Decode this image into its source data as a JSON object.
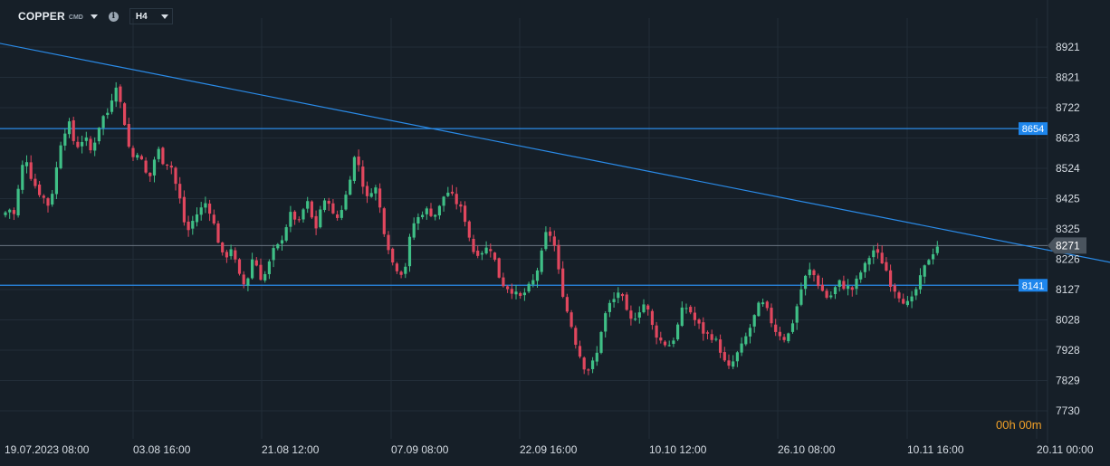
{
  "header": {
    "symbol": "COPPER",
    "symbol_type": "CMD",
    "timeframe": "H4"
  },
  "countdown": {
    "hours": "00",
    "h_unit": "h",
    "minutes": "00",
    "m_unit": "m"
  },
  "colors": {
    "background": "#161f28",
    "grid": "#222d38",
    "up_candle": "#3fbf86",
    "down_candle": "#e0475e",
    "trendline": "#2a8be8",
    "level_label_bg": "#1e86ec",
    "price_label_bg": "#4a545e",
    "axis_text": "#d7dde4",
    "countdown": "#f0a028"
  },
  "chart_data": {
    "type": "candlestick",
    "x_tick_labels": [
      "19.07.2023  08:00",
      "03.08  16:00",
      "21.08  12:00",
      "07.09  08:00",
      "22.09  16:00",
      "10.10  12:00",
      "26.10  08:00",
      "10.11  16:00",
      "20.11  00:00"
    ],
    "y_tick_labels": [
      "8921",
      "8821",
      "8722",
      "8623",
      "8524",
      "8425",
      "8325",
      "8226",
      "8127",
      "8028",
      "7928",
      "7829",
      "7730"
    ],
    "ylim": [
      7730,
      8921
    ],
    "current_price": 8271,
    "horizontal_levels": [
      8654,
      8141
    ],
    "trendlines": [
      {
        "start": {
          "candle": -2,
          "price": 8935
        },
        "end": {
          "candle": 351,
          "price": 7965
        }
      }
    ],
    "close_series": [
      8380,
      8390,
      8370,
      8450,
      8530,
      8555,
      8500,
      8470,
      8445,
      8430,
      8400,
      8435,
      8510,
      8600,
      8640,
      8680,
      8620,
      8595,
      8610,
      8630,
      8575,
      8600,
      8650,
      8690,
      8700,
      8720,
      8820,
      8760,
      8700,
      8630,
      8540,
      8590,
      8560,
      8530,
      8480,
      8520,
      8590,
      8575,
      8520,
      8560,
      8500,
      8450,
      8400,
      8310,
      8330,
      8365,
      8380,
      8400,
      8415,
      8370,
      8325,
      8270,
      8225,
      8245,
      8270,
      8200,
      8160,
      8140,
      8175,
      8240,
      8200,
      8160,
      8180,
      8220,
      8260,
      8270,
      8300,
      8340,
      8375,
      8360,
      8345,
      8390,
      8410,
      8360,
      8330,
      8390,
      8410,
      8420,
      8370,
      8360,
      8390,
      8430,
      8490,
      8560,
      8545,
      8480,
      8420,
      8450,
      8470,
      8410,
      8330,
      8280,
      8220,
      8200,
      8185,
      8180,
      8270,
      8340,
      8355,
      8375,
      8390,
      8380,
      8370,
      8380,
      8420,
      8450,
      8440,
      8420,
      8400,
      8380,
      8330,
      8270,
      8235,
      8260,
      8245,
      8275,
      8250,
      8200,
      8150,
      8140,
      8130,
      8120,
      8105,
      8100,
      8125,
      8140,
      8160,
      8205,
      8260,
      8325,
      8300,
      8260,
      8165,
      8100,
      8045,
      8000,
      7945,
      7905,
      7870,
      7865,
      7890,
      7920,
      8000,
      8050,
      8080,
      8095,
      8120,
      8095,
      8050,
      8025,
      8040,
      8060,
      8080,
      8060,
      8010,
      7980,
      7960,
      7950,
      7945,
      7960,
      8000,
      8055,
      8070,
      8060,
      8030,
      8015,
      7990,
      7980,
      7975,
      7965,
      7940,
      7900,
      7865,
      7880,
      7910,
      7930,
      7960,
      7990,
      8020,
      8065,
      8085,
      8070,
      8040,
      8000,
      7985,
      7975,
      7960,
      8000,
      8040,
      8100,
      8150,
      8180,
      8195,
      8160,
      8135,
      8115,
      8095,
      8115,
      8140,
      8155,
      8130,
      8135,
      8125,
      8165,
      8190,
      8210,
      8240,
      8260,
      8235,
      8215,
      8185,
      8140,
      8125,
      8105,
      8090,
      8080,
      8095,
      8130,
      8165,
      8200,
      8230,
      8250,
      8271
    ],
    "candles_drawn": 220
  }
}
